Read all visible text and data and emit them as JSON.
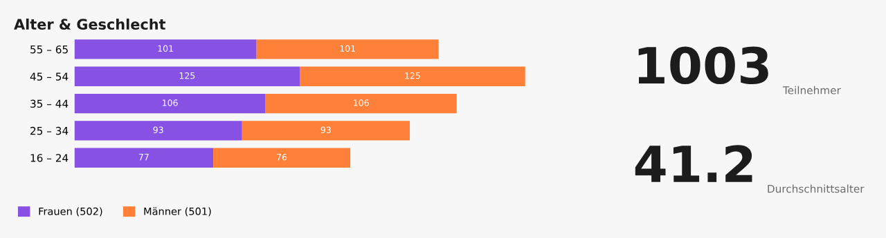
{
  "chart_data": [
    {
      "type": "bar",
      "title": "Alter & Geschlecht",
      "orientation": "horizontal",
      "stacked": true,
      "data_labels": true,
      "legend": "bottom left",
      "grid": false,
      "tick_labels": "y",
      "categories": [
        "55 – 65",
        "45 – 54",
        "35 – 44",
        "25 – 34",
        "16 – 24"
      ],
      "series": [
        {
          "name": "Frauen (502)",
          "color": "#8752e3",
          "values": [
            101,
            125,
            106,
            93,
            77
          ]
        },
        {
          "name": "Männer (501)",
          "color": "#ff8139",
          "values": [
            101,
            125,
            106,
            93,
            76
          ]
        }
      ]
    },
    {
      "type": "other",
      "annotations": [
        "1003",
        "Teilnehmer",
        "41.2",
        "Durchschnittsalter"
      ]
    }
  ]
}
